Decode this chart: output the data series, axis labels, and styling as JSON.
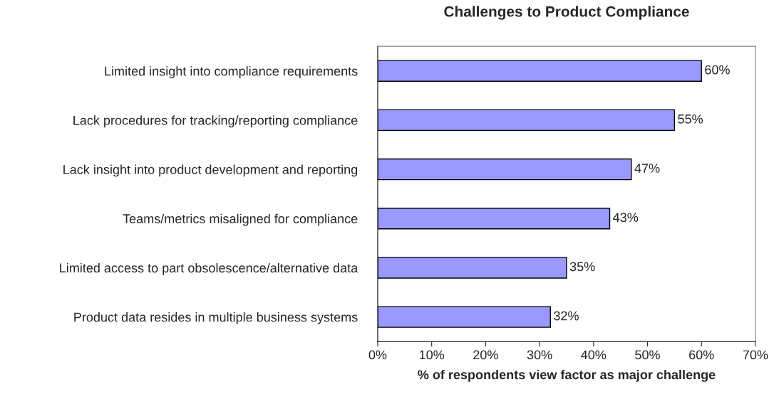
{
  "chart_data": {
    "type": "bar",
    "orientation": "horizontal",
    "title": "Challenges to Product Compliance",
    "xlabel": "% of respondents view factor as major challenge",
    "categories": [
      "Limited insight into compliance requirements",
      "Lack procedures for tracking/reporting compliance",
      "Lack insight into product development and reporting",
      "Teams/metrics misaligned for compliance",
      "Limited access to part obsolescence/alternative data",
      "Product data resides in multiple business systems"
    ],
    "values": [
      60,
      55,
      47,
      43,
      35,
      32
    ],
    "value_labels": [
      "60%",
      "55%",
      "47%",
      "43%",
      "35%",
      "32%"
    ],
    "color": "#9999ff",
    "xlim": [
      0,
      70
    ],
    "xticks": [
      {
        "value": 0,
        "label": "0%"
      },
      {
        "value": 10,
        "label": "10%"
      },
      {
        "value": 20,
        "label": "20%"
      },
      {
        "value": 30,
        "label": "30%"
      },
      {
        "value": 40,
        "label": "40%"
      },
      {
        "value": 50,
        "label": "50%"
      },
      {
        "value": 60,
        "label": "60%"
      },
      {
        "value": 70,
        "label": "70%"
      }
    ],
    "grid": false,
    "legend": false
  }
}
